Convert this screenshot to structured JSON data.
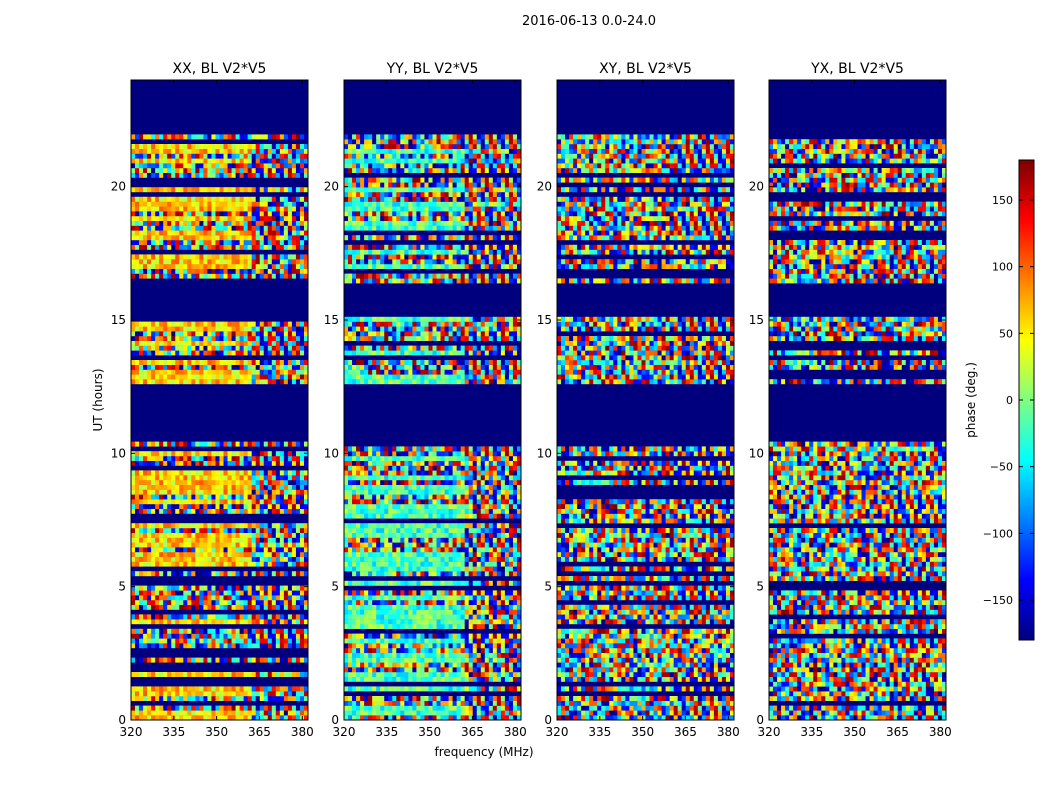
{
  "figure": {
    "suptitle": "2016-06-13 0.0-24.0",
    "xlabel": "frequency (MHz)",
    "ylabel": "UT (hours)"
  },
  "colorbar": {
    "label": "phase (deg.)",
    "range": [
      -180,
      180
    ],
    "ticks": [
      -150,
      -100,
      -50,
      0,
      50,
      100,
      150
    ],
    "tick_labels": [
      "−150",
      "−100",
      "−50",
      "0",
      "50",
      "100",
      "150"
    ],
    "colormap": "jet",
    "colors": [
      "#00007f",
      "#0000ff",
      "#0080ff",
      "#00ffff",
      "#80ff80",
      "#ffff00",
      "#ff8000",
      "#ff0000",
      "#7f0000"
    ]
  },
  "chart_data": [
    {
      "type": "heatmap",
      "title": "XX, BL V2*V5",
      "xlim": [
        320,
        382
      ],
      "ylim": [
        0,
        24
      ],
      "xticks": [
        320,
        335,
        350,
        365,
        380
      ],
      "yticks": [
        0,
        5,
        10,
        15,
        20
      ],
      "value": "phase (deg.)",
      "no_data_bands_hours": [
        [
          10.4,
          12.5
        ],
        [
          15.1,
          16.2
        ],
        [
          21.9,
          24.0
        ]
      ],
      "dominant_phase_deg": 60
    },
    {
      "type": "heatmap",
      "title": "YY, BL V2*V5",
      "xlim": [
        320,
        382
      ],
      "ylim": [
        0,
        24
      ],
      "xticks": [
        320,
        335,
        350,
        365,
        380
      ],
      "yticks": [
        0,
        5,
        10,
        15,
        20
      ],
      "value": "phase (deg.)",
      "no_data_bands_hours": [
        [
          10.4,
          12.5
        ],
        [
          15.1,
          16.2
        ],
        [
          21.9,
          24.0
        ]
      ],
      "dominant_phase_deg": -20
    },
    {
      "type": "heatmap",
      "title": "XY, BL V2*V5",
      "xlim": [
        320,
        382
      ],
      "ylim": [
        0,
        24
      ],
      "xticks": [
        320,
        335,
        350,
        365,
        380
      ],
      "yticks": [
        0,
        5,
        10,
        15,
        20
      ],
      "value": "phase (deg.)",
      "no_data_bands_hours": [
        [
          10.4,
          12.5
        ],
        [
          15.1,
          16.2
        ],
        [
          21.9,
          24.0
        ]
      ],
      "dominant_phase_deg": null
    },
    {
      "type": "heatmap",
      "title": "YX, BL V2*V5",
      "xlim": [
        320,
        382
      ],
      "ylim": [
        0,
        24
      ],
      "xticks": [
        320,
        335,
        350,
        365,
        380
      ],
      "yticks": [
        0,
        5,
        10,
        15,
        20
      ],
      "value": "phase (deg.)",
      "no_data_bands_hours": [
        [
          10.4,
          12.5
        ],
        [
          15.1,
          16.2
        ],
        [
          21.9,
          24.0
        ]
      ],
      "dominant_phase_deg": null
    }
  ]
}
